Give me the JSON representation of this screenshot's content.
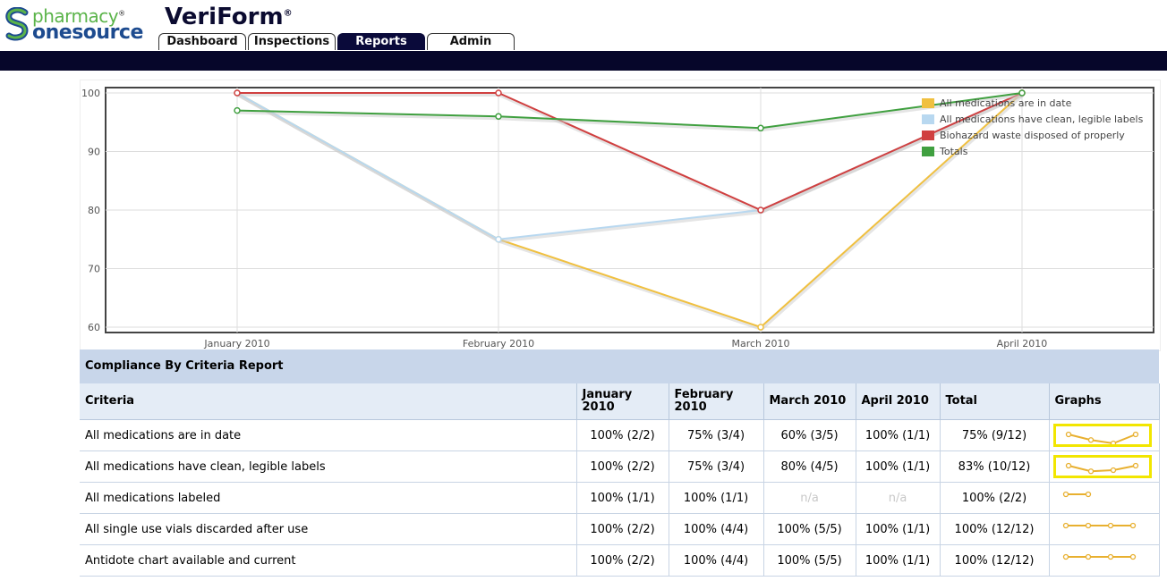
{
  "header": {
    "logo_line1": "pharmacy",
    "logo_reg": "®",
    "logo_line2": "onesource",
    "app_name": "VeriForm",
    "app_reg": "®",
    "tabs": [
      {
        "label": "Dashboard",
        "active": false
      },
      {
        "label": "Inspections",
        "active": false
      },
      {
        "label": "Reports",
        "active": true
      },
      {
        "label": "Admin",
        "active": false
      }
    ]
  },
  "colors": {
    "nav": "#06062a",
    "series": [
      "#f0c040",
      "#b8d8f0",
      "#d04040",
      "#40a040"
    ]
  },
  "chart_data": {
    "type": "line",
    "categories": [
      "January 2010",
      "February 2010",
      "March 2010",
      "April 2010"
    ],
    "ylim": [
      60,
      100
    ],
    "yticks": [
      "60",
      "70",
      "80",
      "90",
      "100"
    ],
    "grid": true,
    "legend_position": "top-right",
    "series": [
      {
        "name": "All medications are in date",
        "values": [
          100,
          75,
          60,
          100
        ]
      },
      {
        "name": "All medications have clean, legible labels",
        "values": [
          100,
          75,
          80,
          100
        ]
      },
      {
        "name": "Biohazard waste disposed of properly",
        "values": [
          100,
          100,
          80,
          100
        ]
      },
      {
        "name": "Totals",
        "values": [
          97,
          96,
          94,
          100
        ]
      }
    ]
  },
  "report": {
    "title": "Compliance By Criteria Report",
    "columns": [
      "Criteria",
      "January 2010",
      "February 2010",
      "March 2010",
      "April 2010",
      "Total",
      "Graphs"
    ],
    "rows": [
      {
        "criteria": "All medications are in date",
        "cells": [
          "100% (2/2)",
          "75% (3/4)",
          "60% (3/5)",
          "100% (1/1)",
          "75% (9/12)"
        ],
        "spark": [
          100,
          75,
          60,
          100
        ],
        "highlight": true
      },
      {
        "criteria": "All medications have clean, legible labels",
        "cells": [
          "100% (2/2)",
          "75% (3/4)",
          "80% (4/5)",
          "100% (1/1)",
          "83% (10/12)"
        ],
        "spark": [
          100,
          75,
          80,
          100
        ],
        "highlight": true
      },
      {
        "criteria": "All medications labeled",
        "cells": [
          "100% (1/1)",
          "100% (1/1)",
          "n/a",
          "n/a",
          "100% (2/2)"
        ],
        "spark": [
          100,
          100
        ],
        "highlight": false
      },
      {
        "criteria": "All single use vials discarded after use",
        "cells": [
          "100% (2/2)",
          "100% (4/4)",
          "100% (5/5)",
          "100% (1/1)",
          "100% (12/12)"
        ],
        "spark": [
          100,
          100,
          100,
          100
        ],
        "highlight": false
      },
      {
        "criteria": "Antidote chart available and current",
        "cells": [
          "100% (2/2)",
          "100% (4/4)",
          "100% (5/5)",
          "100% (1/1)",
          "100% (12/12)"
        ],
        "spark": [
          100,
          100,
          100,
          100
        ],
        "highlight": false
      }
    ]
  }
}
